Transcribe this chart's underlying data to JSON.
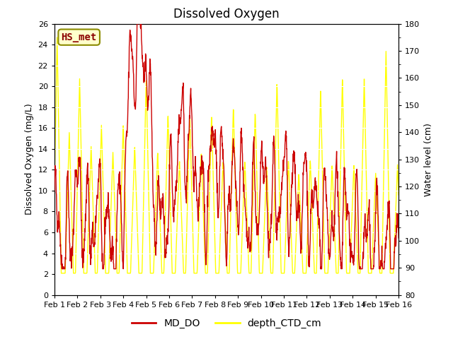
{
  "title": "Dissolved Oxygen",
  "ylabel_left": "Dissolved Oxygen (mg/L)",
  "ylabel_right": "Water level (cm)",
  "ylim_left": [
    0,
    26
  ],
  "ylim_right": [
    80,
    180
  ],
  "yticks_left": [
    0,
    2,
    4,
    6,
    8,
    10,
    12,
    14,
    16,
    18,
    20,
    22,
    24,
    26
  ],
  "yticks_right": [
    80,
    90,
    100,
    110,
    120,
    130,
    140,
    150,
    160,
    170,
    180
  ],
  "xtick_labels": [
    "Feb 1",
    "Feb 2",
    "Feb 3",
    "Feb 4",
    "Feb 5",
    "Feb 6",
    "Feb 7",
    "Feb 8",
    "Feb 9",
    "Feb 10",
    "Feb 11",
    "Feb 12",
    "Feb 13",
    "Feb 14",
    "Feb 15",
    "Feb 16"
  ],
  "legend_labels": [
    "MD_DO",
    "depth_CTD_cm"
  ],
  "line_color_do": "#cc0000",
  "line_color_depth": "#ffff00",
  "annotation_text": "HS_met",
  "annotation_color": "#8B0000",
  "annotation_bg": "#ffffcc",
  "annotation_border": "#8B8B00",
  "background_color": "#ffffff",
  "plot_bg_color": "#e8e8e8",
  "grid_color": "#ffffff",
  "title_fontsize": 12,
  "label_fontsize": 9,
  "tick_fontsize": 8,
  "legend_fontsize": 10,
  "num_points": 1500
}
